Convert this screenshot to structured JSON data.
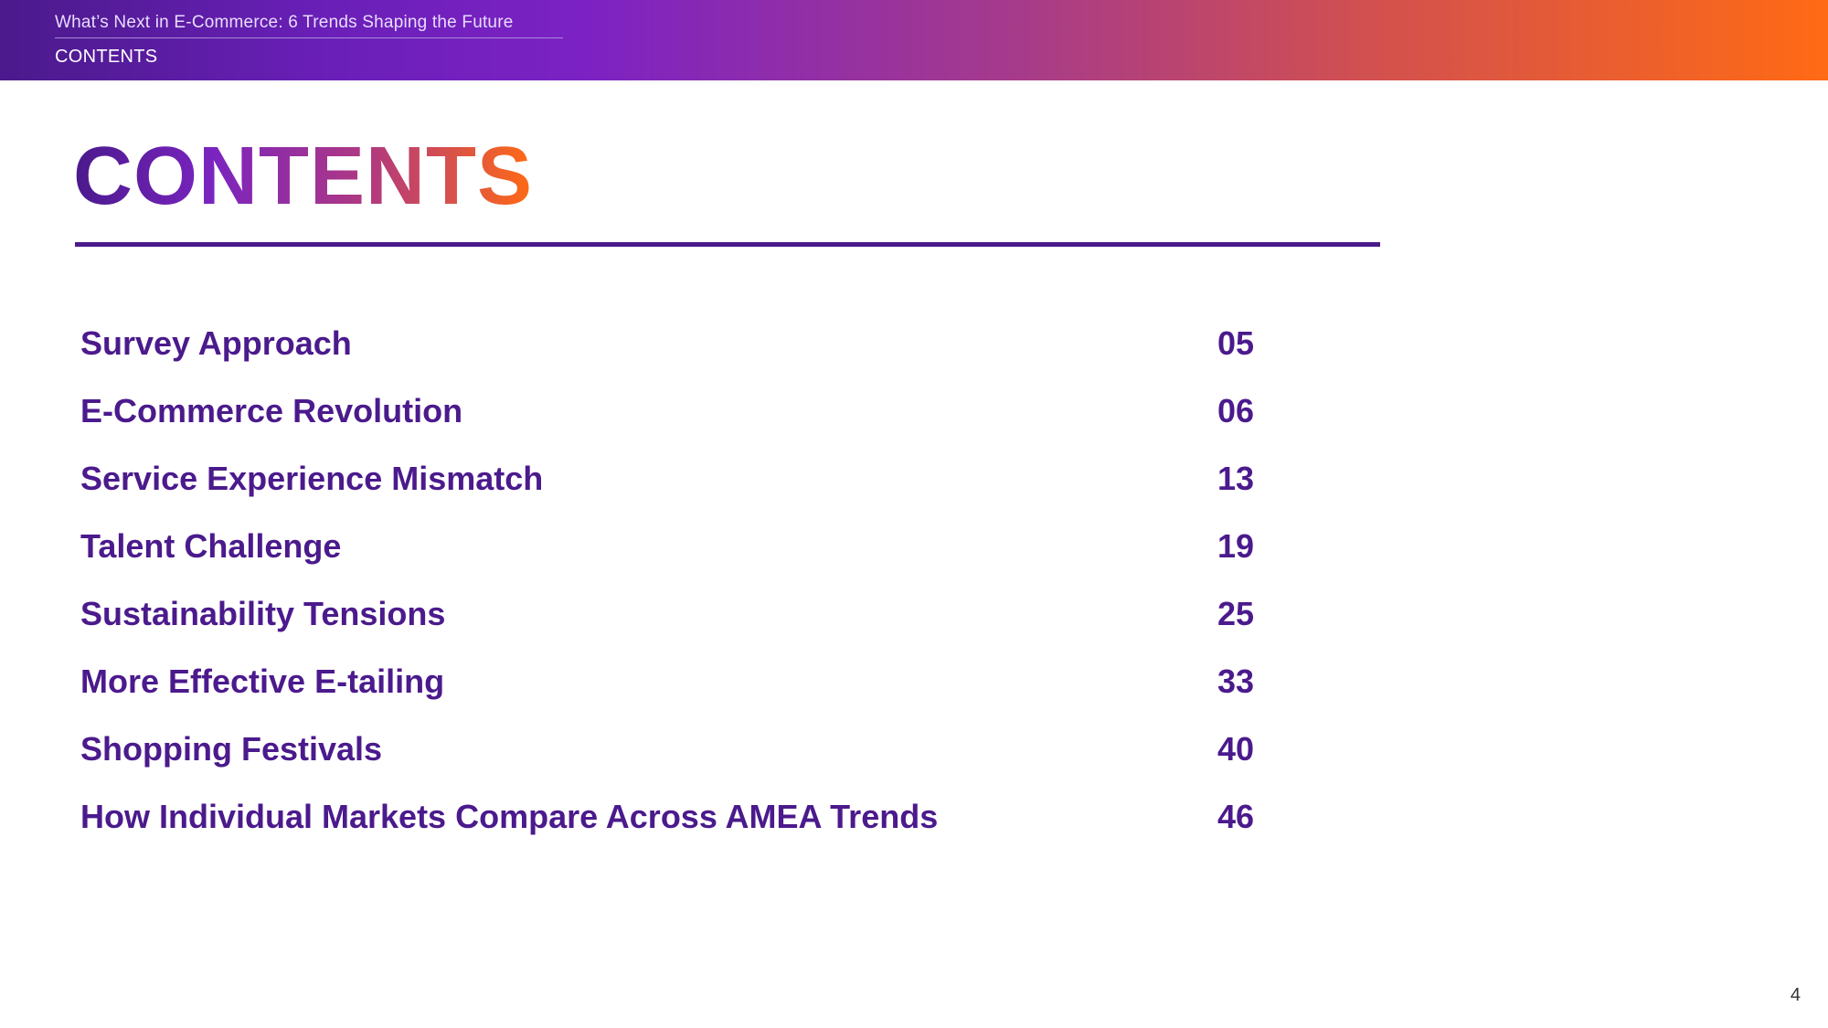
{
  "header": {
    "document_title": "What’s Next in E-Commerce: 6 Trends Shaping the Future",
    "section_label": "CONTENTS"
  },
  "main": {
    "heading": "CONTENTS",
    "toc": [
      {
        "label": "Survey Approach",
        "page": "05"
      },
      {
        "label": "E-Commerce Revolution",
        "page": "06"
      },
      {
        "label": "Service Experience Mismatch",
        "page": "13"
      },
      {
        "label": "Talent Challenge",
        "page": "19"
      },
      {
        "label": "Sustainability Tensions",
        "page": "25"
      },
      {
        "label": "More Effective E-tailing",
        "page": "33"
      },
      {
        "label": "Shopping Festivals",
        "page": "40"
      },
      {
        "label": "How Individual Markets Compare Across AMEA Trends",
        "page": "46"
      }
    ]
  },
  "footer": {
    "page_number": "4"
  },
  "colors": {
    "primary_purple": "#4b1a8c",
    "accent_orange": "#ff6a14"
  }
}
